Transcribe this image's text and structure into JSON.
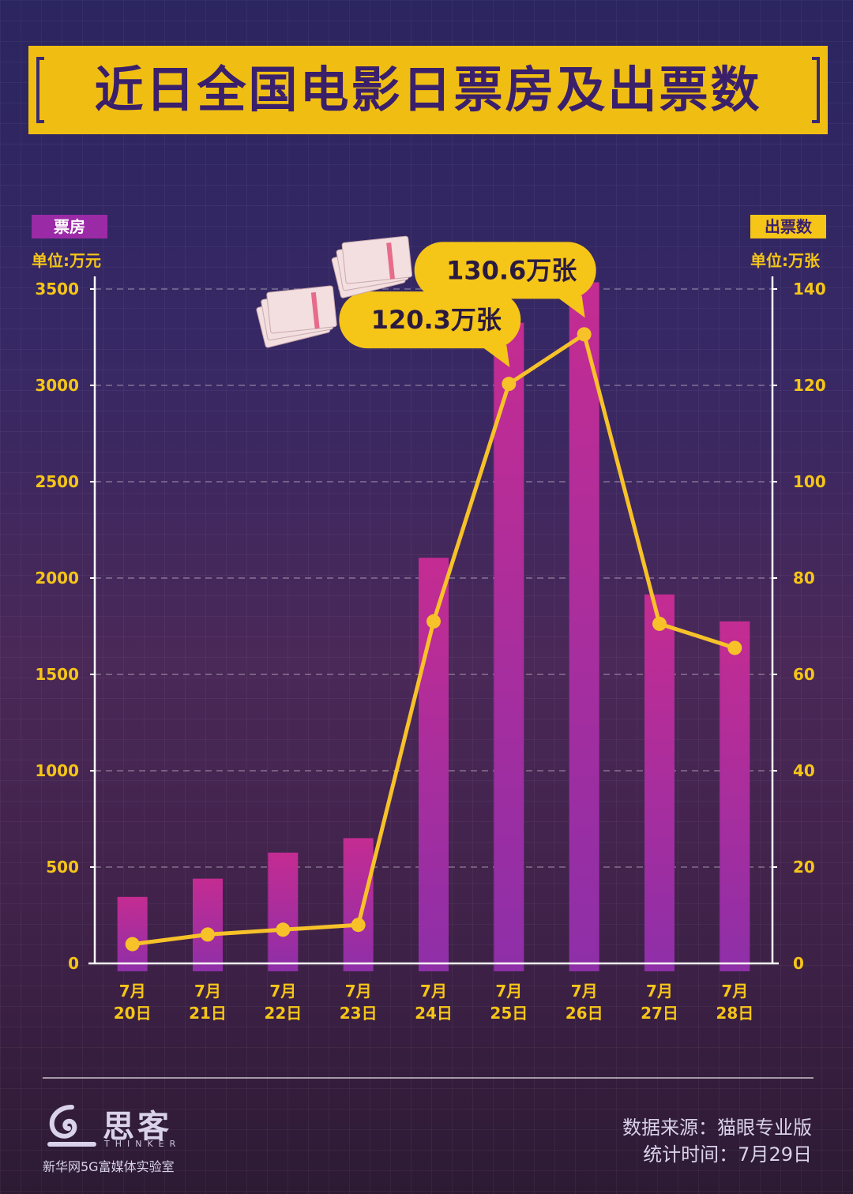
{
  "title": "近日全国电影日票房及出票数",
  "left_axis": {
    "tag": "票房",
    "unit": "单位:万元"
  },
  "right_axis": {
    "tag": "出票数",
    "unit": "单位:万张"
  },
  "chart_data": {
    "type": "bar+line",
    "categories": [
      "7月20日",
      "7月21日",
      "7月22日",
      "7月23日",
      "7月24日",
      "7月25日",
      "7月26日",
      "7月27日",
      "7月28日"
    ],
    "x_labels": [
      [
        "7月",
        "20日"
      ],
      [
        "7月",
        "21日"
      ],
      [
        "7月",
        "22日"
      ],
      [
        "7月",
        "23日"
      ],
      [
        "7月",
        "24日"
      ],
      [
        "7月",
        "25日"
      ],
      [
        "7月",
        "26日"
      ],
      [
        "7月",
        "27日"
      ],
      [
        "7月",
        "28日"
      ]
    ],
    "series": [
      {
        "name": "票房",
        "type": "bar",
        "axis": "left",
        "values": [
          345,
          440,
          575,
          650,
          2105,
          3325,
          3535,
          1915,
          1775
        ]
      },
      {
        "name": "出票数",
        "type": "line",
        "axis": "right",
        "values": [
          4,
          6,
          7,
          8,
          71,
          120.3,
          130.6,
          70.5,
          65.5
        ]
      }
    ],
    "left_ylim": [
      0,
      3500
    ],
    "left_ticks": [
      0,
      500,
      1000,
      1500,
      2000,
      2500,
      3000,
      3500
    ],
    "right_ylim": [
      0,
      140
    ],
    "right_ticks": [
      0,
      20,
      40,
      60,
      80,
      100,
      120,
      140
    ],
    "annotations": [
      {
        "category_index": 5,
        "text": "120.3万张"
      },
      {
        "category_index": 6,
        "text": "130.6万张"
      }
    ],
    "grid": true,
    "colors": {
      "bar_top": "#c42c92",
      "bar_bottom": "#8e2fa8",
      "line": "#f7c229",
      "axis": "#ffffff",
      "tick_text": "#f5c518",
      "callout": "#f5c518"
    }
  },
  "footer": {
    "brand_cn": "思客",
    "brand_en": "THINKER",
    "brand_sub": "新华网5G富媒体实验室",
    "source": "数据来源：猫眼专业版",
    "stat_time": "统计时间：7月29日"
  }
}
